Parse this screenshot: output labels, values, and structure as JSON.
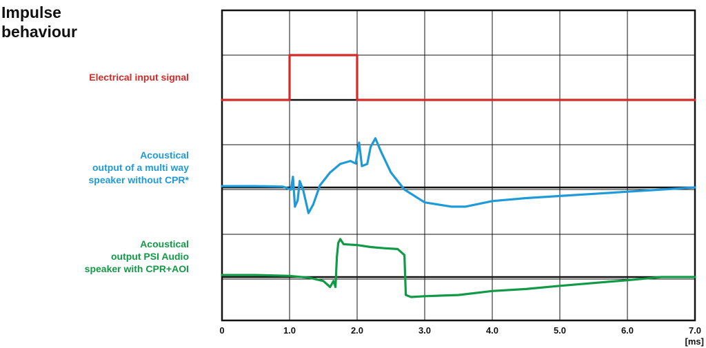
{
  "title_line1": "Impulse",
  "title_line2": "behaviour",
  "chart_data": {
    "type": "line",
    "title": "Impulse behaviour",
    "xlabel": "[ms]",
    "xlim": [
      0,
      7
    ],
    "x_ticks": [
      "0",
      "1.0",
      "2.0",
      "3.0",
      "4.0",
      "5.0",
      "6.0",
      "7.0"
    ],
    "grid": true,
    "series": [
      {
        "name": "Electrical input signal",
        "label_lines": [
          "Electrical input signal"
        ],
        "color": "#d42a27",
        "baseline": 0,
        "points": [
          [
            0,
            0
          ],
          [
            1.0,
            0
          ],
          [
            1.0,
            1
          ],
          [
            2.0,
            1
          ],
          [
            2.0,
            0
          ],
          [
            7.0,
            0
          ]
        ]
      },
      {
        "name": "Acoustical output of a multi way speaker without CPR*",
        "label_lines": [
          "Acoustical",
          "output of a multi way",
          "speaker without CPR*"
        ],
        "color": "#1e9ad8",
        "baseline": 0,
        "points": [
          [
            0,
            0.03
          ],
          [
            0.5,
            0.03
          ],
          [
            0.9,
            0.02
          ],
          [
            1.02,
            -0.05
          ],
          [
            1.05,
            0.25
          ],
          [
            1.08,
            -0.45
          ],
          [
            1.12,
            -0.3
          ],
          [
            1.15,
            0.15
          ],
          [
            1.2,
            -0.05
          ],
          [
            1.28,
            -0.6
          ],
          [
            1.35,
            -0.4
          ],
          [
            1.45,
            0.05
          ],
          [
            1.6,
            0.35
          ],
          [
            1.75,
            0.55
          ],
          [
            1.9,
            0.62
          ],
          [
            1.98,
            0.56
          ],
          [
            2.03,
            1.05
          ],
          [
            2.07,
            0.5
          ],
          [
            2.15,
            0.55
          ],
          [
            2.2,
            0.95
          ],
          [
            2.27,
            1.15
          ],
          [
            2.35,
            0.85
          ],
          [
            2.5,
            0.35
          ],
          [
            2.7,
            -0.05
          ],
          [
            3.0,
            -0.35
          ],
          [
            3.4,
            -0.45
          ],
          [
            3.6,
            -0.45
          ],
          [
            4.0,
            -0.32
          ],
          [
            4.5,
            -0.25
          ],
          [
            5.0,
            -0.2
          ],
          [
            5.5,
            -0.15
          ],
          [
            6.0,
            -0.1
          ],
          [
            6.5,
            -0.05
          ],
          [
            7.0,
            0.0
          ]
        ]
      },
      {
        "name": "Acoustical output PSI Audio speaker with CPR+AOI",
        "label_lines": [
          "Acoustical",
          "output PSI Audio",
          "speaker with CPR+AOI"
        ],
        "color": "#119a45",
        "baseline": 0,
        "points": [
          [
            0,
            0.05
          ],
          [
            0.5,
            0.05
          ],
          [
            1.0,
            0.03
          ],
          [
            1.3,
            -0.02
          ],
          [
            1.5,
            -0.1
          ],
          [
            1.6,
            -0.25
          ],
          [
            1.65,
            -0.1
          ],
          [
            1.68,
            -0.25
          ],
          [
            1.7,
            0.5
          ],
          [
            1.72,
            0.85
          ],
          [
            1.75,
            0.95
          ],
          [
            1.8,
            0.82
          ],
          [
            2.0,
            0.8
          ],
          [
            2.2,
            0.75
          ],
          [
            2.4,
            0.72
          ],
          [
            2.6,
            0.7
          ],
          [
            2.7,
            0.55
          ],
          [
            2.72,
            -0.45
          ],
          [
            2.8,
            -0.5
          ],
          [
            3.0,
            -0.48
          ],
          [
            3.5,
            -0.45
          ],
          [
            4.0,
            -0.35
          ],
          [
            4.5,
            -0.3
          ],
          [
            5.0,
            -0.22
          ],
          [
            5.5,
            -0.15
          ],
          [
            6.0,
            -0.08
          ],
          [
            6.5,
            0.0
          ],
          [
            7.0,
            0.0
          ]
        ]
      }
    ]
  }
}
